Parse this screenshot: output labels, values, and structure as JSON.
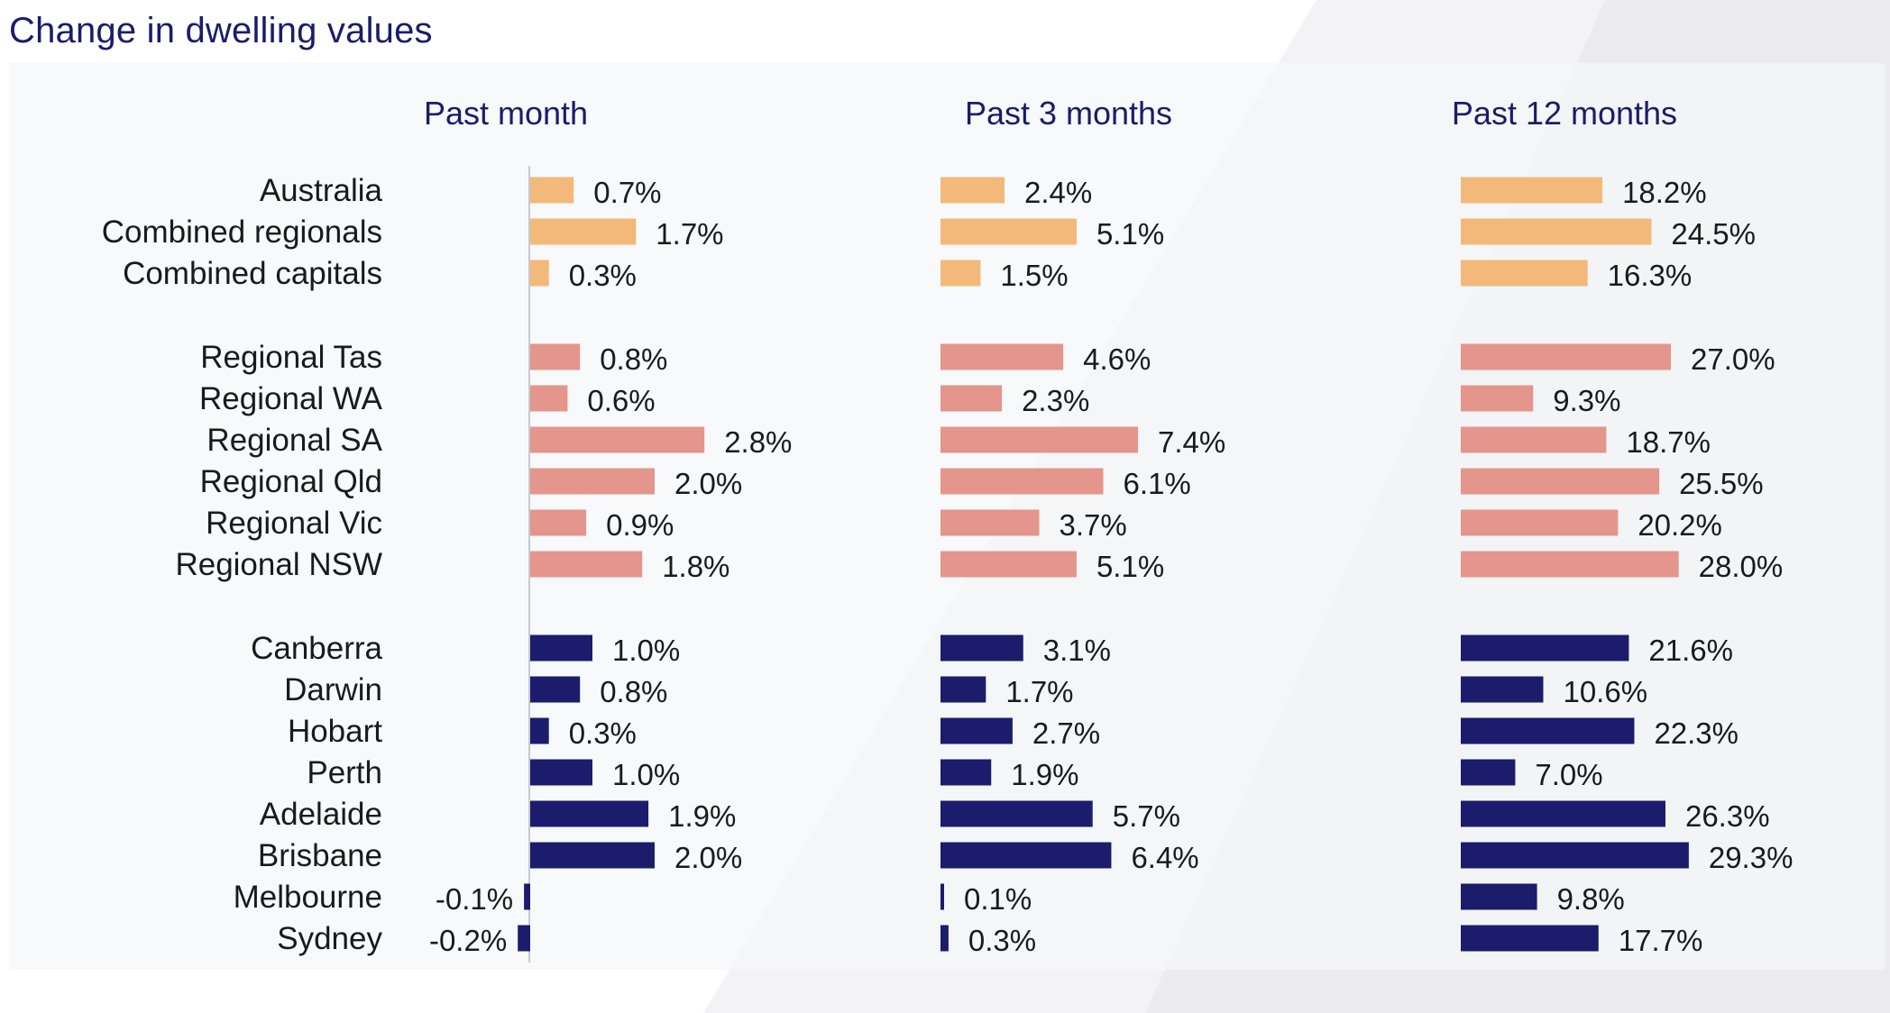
{
  "title": "Change in dwelling values",
  "chart_data": {
    "type": "bar",
    "orientation": "horizontal",
    "title": "Change in dwelling values",
    "categories": [
      "Australia",
      "Combined regionals",
      "Combined capitals",
      "Regional Tas",
      "Regional WA",
      "Regional SA",
      "Regional Qld",
      "Regional Vic",
      "Regional NSW",
      "Canberra",
      "Darwin",
      "Hobart",
      "Perth",
      "Adelaide",
      "Brisbane",
      "Melbourne",
      "Sydney"
    ],
    "groups": [
      {
        "name": "national",
        "categories": [
          "Australia",
          "Combined regionals",
          "Combined capitals"
        ],
        "color": "#f2b97a"
      },
      {
        "name": "regional",
        "categories": [
          "Regional Tas",
          "Regional WA",
          "Regional SA",
          "Regional Qld",
          "Regional Vic",
          "Regional NSW"
        ],
        "color": "#e4958c"
      },
      {
        "name": "capitals",
        "categories": [
          "Canberra",
          "Darwin",
          "Hobart",
          "Perth",
          "Adelaide",
          "Brisbane",
          "Melbourne",
          "Sydney"
        ],
        "color": "#1b1c6b"
      }
    ],
    "panels": [
      {
        "name": "Past month",
        "unit": "%",
        "values": [
          0.7,
          1.7,
          0.3,
          0.8,
          0.6,
          2.8,
          2.0,
          0.9,
          1.8,
          1.0,
          0.8,
          0.3,
          1.0,
          1.9,
          2.0,
          -0.1,
          -0.2
        ]
      },
      {
        "name": "Past 3 months",
        "unit": "%",
        "values": [
          2.4,
          5.1,
          1.5,
          4.6,
          2.3,
          7.4,
          6.1,
          3.7,
          5.1,
          3.1,
          1.7,
          2.7,
          1.9,
          5.7,
          6.4,
          0.1,
          0.3
        ]
      },
      {
        "name": "Past 12 months",
        "unit": "%",
        "values": [
          18.2,
          24.5,
          16.3,
          27.0,
          9.3,
          18.7,
          25.5,
          20.2,
          28.0,
          21.6,
          10.6,
          22.3,
          7.0,
          26.3,
          29.3,
          9.8,
          17.7
        ]
      }
    ],
    "legend": "none",
    "grid": false
  }
}
